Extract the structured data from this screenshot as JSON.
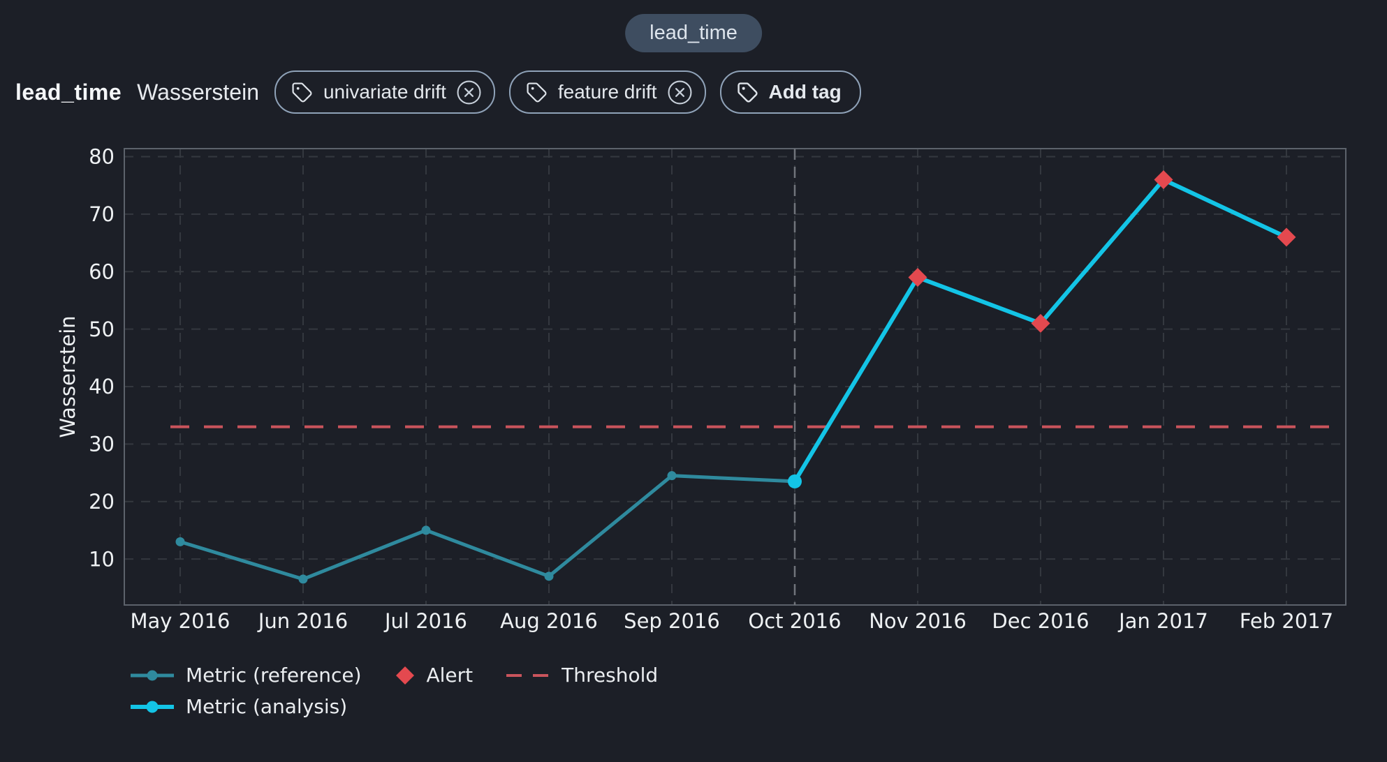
{
  "page": {
    "background": "#1c1f27"
  },
  "toolbar": {
    "selected_column_pill": "lead_time"
  },
  "header": {
    "title": "lead_time",
    "subtitle": "Wasserstein",
    "tags": [
      {
        "label": "univariate drift",
        "removable": true
      },
      {
        "label": "feature drift",
        "removable": true
      }
    ],
    "add_tag_label": "Add tag"
  },
  "chart_data": {
    "type": "line",
    "title": "",
    "xlabel": "",
    "ylabel": "Wasserstein",
    "categories": [
      "May 2016",
      "Jun 2016",
      "Jul 2016",
      "Aug 2016",
      "Sep 2016",
      "Oct 2016",
      "Nov 2016",
      "Dec 2016",
      "Jan 2017",
      "Feb 2017"
    ],
    "y_ticks": [
      10,
      20,
      30,
      40,
      50,
      60,
      70,
      80
    ],
    "ylim": [
      2,
      81.4
    ],
    "grid": true,
    "legend_position": "bottom-left",
    "series": [
      {
        "name": "Metric (reference)",
        "color": "#2f8a9e",
        "start_index": 0,
        "marker": "circle",
        "values": [
          13,
          6.5,
          15,
          7,
          24.5,
          23.5
        ]
      },
      {
        "name": "Metric (analysis)",
        "color": "#13c4e6",
        "start_index": 5,
        "marker": "circle",
        "values": [
          23.5,
          59,
          51,
          76,
          66
        ]
      }
    ],
    "alerts": {
      "name": "Alert",
      "color": "#e4494f",
      "marker": "diamond",
      "points": [
        {
          "category": "Nov 2016",
          "value": 59
        },
        {
          "category": "Dec 2016",
          "value": 51
        },
        {
          "category": "Jan 2017",
          "value": 76
        },
        {
          "category": "Feb 2017",
          "value": 66
        }
      ]
    },
    "threshold": {
      "name": "Threshold",
      "value": 33,
      "color": "#c9545c",
      "style": "dashed"
    },
    "separator": {
      "category": "Oct 2016",
      "style": "dashed",
      "color": "#70747b"
    },
    "colors": {
      "grid": "#34383f",
      "frame": "#5c626b",
      "tick_text": "#eef1f3",
      "background": "#1c1f27"
    }
  }
}
